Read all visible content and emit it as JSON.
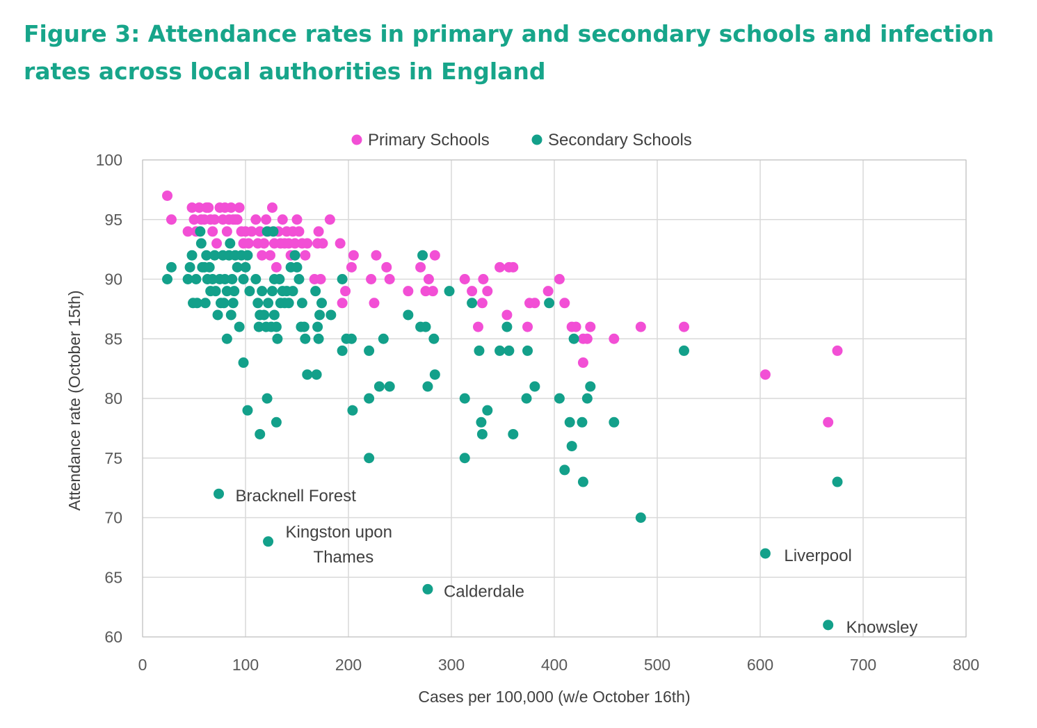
{
  "title": "Figure 3: Attendance rates in primary and secondary schools and infection rates across local authorities in England",
  "chart_data": {
    "type": "scatter",
    "xlabel": "Cases per 100,000 (w/e October 16th)",
    "ylabel": "Attendance rate (October 15th)",
    "xlim": [
      0,
      800
    ],
    "ylim": [
      60,
      100
    ],
    "xticks": [
      0,
      100,
      200,
      300,
      400,
      500,
      600,
      700,
      800
    ],
    "yticks": [
      60,
      65,
      70,
      75,
      80,
      85,
      90,
      95,
      100
    ],
    "grid": true,
    "legend_position": "top",
    "colors": {
      "primary": "#f24fd5",
      "secondary": "#13a08a",
      "title": "#17a58a",
      "grid": "#d9d9d9"
    },
    "series": [
      {
        "name": "Primary Schools",
        "color": "#f24fd5",
        "points": [
          [
            24,
            97
          ],
          [
            28,
            95
          ],
          [
            44,
            94
          ],
          [
            48,
            96
          ],
          [
            50,
            95
          ],
          [
            52,
            94
          ],
          [
            55,
            96
          ],
          [
            57,
            95
          ],
          [
            60,
            95
          ],
          [
            62,
            96
          ],
          [
            64,
            96
          ],
          [
            66,
            95
          ],
          [
            68,
            94
          ],
          [
            70,
            95
          ],
          [
            72,
            93
          ],
          [
            75,
            96
          ],
          [
            78,
            95
          ],
          [
            80,
            96
          ],
          [
            82,
            94
          ],
          [
            84,
            95
          ],
          [
            86,
            96
          ],
          [
            88,
            95
          ],
          [
            90,
            95
          ],
          [
            92,
            95
          ],
          [
            94,
            96
          ],
          [
            96,
            94
          ],
          [
            98,
            93
          ],
          [
            100,
            94
          ],
          [
            103,
            93
          ],
          [
            106,
            94
          ],
          [
            110,
            95
          ],
          [
            112,
            93
          ],
          [
            114,
            94
          ],
          [
            116,
            92
          ],
          [
            118,
            93
          ],
          [
            120,
            95
          ],
          [
            122,
            94
          ],
          [
            124,
            92
          ],
          [
            126,
            96
          ],
          [
            128,
            93
          ],
          [
            130,
            91
          ],
          [
            132,
            94
          ],
          [
            134,
            93
          ],
          [
            136,
            95
          ],
          [
            138,
            93
          ],
          [
            140,
            94
          ],
          [
            142,
            93
          ],
          [
            144,
            92
          ],
          [
            146,
            94
          ],
          [
            148,
            93
          ],
          [
            150,
            95
          ],
          [
            152,
            94
          ],
          [
            155,
            93
          ],
          [
            158,
            92
          ],
          [
            160,
            93
          ],
          [
            167,
            90
          ],
          [
            170,
            93
          ],
          [
            171,
            94
          ],
          [
            173,
            90
          ],
          [
            175,
            93
          ],
          [
            182,
            95
          ],
          [
            192,
            93
          ],
          [
            194,
            88
          ],
          [
            197,
            89
          ],
          [
            203,
            91
          ],
          [
            205,
            92
          ],
          [
            222,
            90
          ],
          [
            225,
            88
          ],
          [
            227,
            92
          ],
          [
            237,
            91
          ],
          [
            240,
            90
          ],
          [
            258,
            89
          ],
          [
            270,
            91
          ],
          [
            275,
            89
          ],
          [
            278,
            90
          ],
          [
            282,
            89
          ],
          [
            284,
            92
          ],
          [
            313,
            90
          ],
          [
            320,
            89
          ],
          [
            326,
            86
          ],
          [
            330,
            88
          ],
          [
            331,
            90
          ],
          [
            335,
            89
          ],
          [
            347,
            91
          ],
          [
            354,
            87
          ],
          [
            356,
            91
          ],
          [
            360,
            91
          ],
          [
            374,
            86
          ],
          [
            376,
            88
          ],
          [
            381,
            88
          ],
          [
            394,
            89
          ],
          [
            405,
            90
          ],
          [
            410,
            88
          ],
          [
            417,
            86
          ],
          [
            421,
            86
          ],
          [
            428,
            85
          ],
          [
            428,
            83
          ],
          [
            432,
            85
          ],
          [
            435,
            86
          ],
          [
            458,
            85
          ],
          [
            484,
            86
          ],
          [
            526,
            86
          ],
          [
            605,
            82
          ],
          [
            666,
            78
          ],
          [
            675,
            84
          ]
        ]
      },
      {
        "name": "Secondary Schools",
        "color": "#13a08a",
        "points": [
          [
            24,
            90
          ],
          [
            28,
            91
          ],
          [
            44,
            90
          ],
          [
            46,
            91
          ],
          [
            48,
            92
          ],
          [
            49,
            88
          ],
          [
            52,
            90
          ],
          [
            53,
            88
          ],
          [
            56,
            94
          ],
          [
            57,
            93
          ],
          [
            58,
            91
          ],
          [
            60,
            91
          ],
          [
            61,
            88
          ],
          [
            62,
            92
          ],
          [
            63,
            90
          ],
          [
            65,
            91
          ],
          [
            66,
            89
          ],
          [
            68,
            90
          ],
          [
            70,
            92
          ],
          [
            71,
            89
          ],
          [
            73,
            87
          ],
          [
            75,
            90
          ],
          [
            76,
            88
          ],
          [
            78,
            92
          ],
          [
            79,
            88
          ],
          [
            80,
            90
          ],
          [
            82,
            89
          ],
          [
            82,
            85
          ],
          [
            84,
            92
          ],
          [
            85,
            93
          ],
          [
            86,
            87
          ],
          [
            87,
            90
          ],
          [
            88,
            88
          ],
          [
            89,
            89
          ],
          [
            90,
            92
          ],
          [
            92,
            91
          ],
          [
            94,
            86
          ],
          [
            96,
            92
          ],
          [
            98,
            90
          ],
          [
            100,
            91
          ],
          [
            102,
            92
          ],
          [
            104,
            89
          ],
          [
            110,
            90
          ],
          [
            112,
            88
          ],
          [
            113,
            86
          ],
          [
            114,
            87
          ],
          [
            116,
            89
          ],
          [
            118,
            87
          ],
          [
            120,
            86
          ],
          [
            121,
            94
          ],
          [
            122,
            88
          ],
          [
            125,
            86
          ],
          [
            126,
            89
          ],
          [
            127,
            94
          ],
          [
            128,
            90
          ],
          [
            128,
            87
          ],
          [
            130,
            86
          ],
          [
            131,
            85
          ],
          [
            133,
            90
          ],
          [
            134,
            88
          ],
          [
            136,
            89
          ],
          [
            138,
            88
          ],
          [
            140,
            89
          ],
          [
            142,
            88
          ],
          [
            144,
            91
          ],
          [
            146,
            89
          ],
          [
            148,
            92
          ],
          [
            150,
            91
          ],
          [
            152,
            90
          ],
          [
            154,
            86
          ],
          [
            155,
            88
          ],
          [
            157,
            86
          ],
          [
            158,
            85
          ],
          [
            160,
            82
          ],
          [
            168,
            89
          ],
          [
            169,
            82
          ],
          [
            170,
            86
          ],
          [
            171,
            85
          ],
          [
            172,
            87
          ],
          [
            174,
            88
          ],
          [
            183,
            87
          ],
          [
            194,
            84
          ],
          [
            194,
            90
          ],
          [
            198,
            85
          ],
          [
            203,
            85
          ],
          [
            220,
            84
          ],
          [
            230,
            81
          ],
          [
            234,
            85
          ],
          [
            240,
            81
          ],
          [
            258,
            87
          ],
          [
            270,
            86
          ],
          [
            272,
            92
          ],
          [
            275,
            86
          ],
          [
            277,
            81
          ],
          [
            283,
            85
          ],
          [
            284,
            82
          ],
          [
            298,
            89
          ],
          [
            320,
            88
          ],
          [
            327,
            84
          ],
          [
            354,
            86
          ],
          [
            347,
            84
          ],
          [
            356,
            84
          ],
          [
            374,
            84
          ],
          [
            395,
            88
          ],
          [
            419,
            85
          ],
          [
            526,
            84
          ],
          [
            98,
            83
          ],
          [
            102,
            79
          ],
          [
            114,
            77
          ],
          [
            121,
            80
          ],
          [
            130,
            78
          ],
          [
            204,
            79
          ],
          [
            220,
            80
          ],
          [
            220,
            75
          ],
          [
            313,
            80
          ],
          [
            313,
            75
          ],
          [
            329,
            78
          ],
          [
            330,
            77
          ],
          [
            335,
            79
          ],
          [
            360,
            77
          ],
          [
            373,
            80
          ],
          [
            381,
            81
          ],
          [
            405,
            80
          ],
          [
            410,
            74
          ],
          [
            415,
            78
          ],
          [
            417,
            76
          ],
          [
            427,
            78
          ],
          [
            428,
            73
          ],
          [
            432,
            80
          ],
          [
            435,
            81
          ],
          [
            458,
            78
          ],
          [
            484,
            70
          ],
          [
            675,
            73
          ],
          [
            74,
            72
          ],
          [
            122,
            68
          ],
          [
            277,
            64
          ],
          [
            605,
            67
          ],
          [
            666,
            61
          ]
        ]
      }
    ],
    "annotations": [
      {
        "text": "Bracknell Forest",
        "x": 74,
        "y": 72
      },
      {
        "text": "Kingston upon",
        "x": 122,
        "y": 68
      },
      {
        "text": "Thames",
        "x": 122,
        "y": 68
      },
      {
        "text": "Calderdale",
        "x": 277,
        "y": 64
      },
      {
        "text": "Liverpool",
        "x": 605,
        "y": 67
      },
      {
        "text": "Knowsley",
        "x": 666,
        "y": 61
      }
    ]
  }
}
